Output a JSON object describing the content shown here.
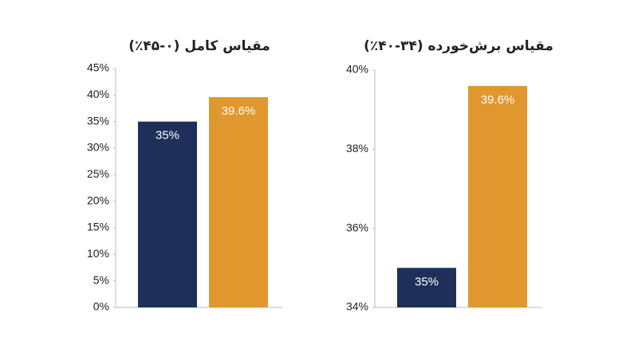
{
  "chart_data": [
    {
      "type": "bar",
      "title": "مقیاس کامل (۰-۴۵٪)",
      "values": [
        35,
        39.6
      ],
      "value_labels": [
        "35%",
        "39.6%"
      ],
      "colors": [
        "#1f2f5a",
        "#e0982e"
      ],
      "ylim": [
        0,
        45
      ],
      "yticks": [
        {
          "value": 0,
          "label": "0%"
        },
        {
          "value": 5,
          "label": "5%"
        },
        {
          "value": 10,
          "label": "10%"
        },
        {
          "value": 15,
          "label": "15%"
        },
        {
          "value": 20,
          "label": "20%"
        },
        {
          "value": 25,
          "label": "25%"
        },
        {
          "value": 30,
          "label": "30%"
        },
        {
          "value": 35,
          "label": "35%"
        },
        {
          "value": 40,
          "label": "40%"
        },
        {
          "value": 45,
          "label": "45%"
        }
      ]
    },
    {
      "type": "bar",
      "title": "مقیاس برش‌خورده (۳۴-۴۰٪)",
      "values": [
        35,
        39.6
      ],
      "value_labels": [
        "35%",
        "39.6%"
      ],
      "colors": [
        "#1f2f5a",
        "#e0982e"
      ],
      "ylim": [
        34,
        40
      ],
      "yticks": [
        {
          "value": 34,
          "label": "34%"
        },
        {
          "value": 36,
          "label": "36%"
        },
        {
          "value": 38,
          "label": "38%"
        },
        {
          "value": 40,
          "label": "40%"
        }
      ]
    }
  ]
}
